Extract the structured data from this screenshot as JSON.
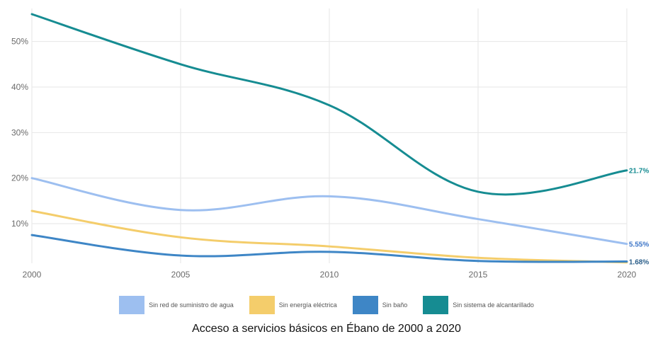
{
  "chart_data": {
    "type": "line",
    "title": "Acceso a servicios básicos en Ébano de 2000 a 2020",
    "x": [
      2000,
      2005,
      2010,
      2015,
      2020
    ],
    "xlim": [
      2000,
      2020
    ],
    "ylim": [
      1.3,
      56
    ],
    "y_ticks": [
      10,
      20,
      30,
      40,
      50
    ],
    "y_tick_labels": [
      "10%",
      "20%",
      "30%",
      "40%",
      "50%"
    ],
    "x_tick_labels": [
      "2000",
      "2005",
      "2010",
      "2015",
      "2020"
    ],
    "grid": true,
    "legend_position": "bottom",
    "series": [
      {
        "name": "Sin red de suministro de agua",
        "color": "#9dbff0",
        "values": [
          20,
          13,
          16,
          11,
          5.55
        ],
        "end_label": "5.55%"
      },
      {
        "name": "Sin energía eléctrica",
        "color": "#f4cd6b",
        "values": [
          12.8,
          7,
          5,
          2.5,
          1.5
        ]
      },
      {
        "name": "Sin baño",
        "color": "#3e86c6",
        "values": [
          7.5,
          3,
          3.8,
          1.8,
          1.68
        ],
        "end_label": "1.68%"
      },
      {
        "name": "Sin sistema de alcantarillado",
        "color": "#168c92",
        "values": [
          56,
          45,
          36,
          17,
          21.7
        ],
        "end_label": "21.7%"
      }
    ]
  }
}
